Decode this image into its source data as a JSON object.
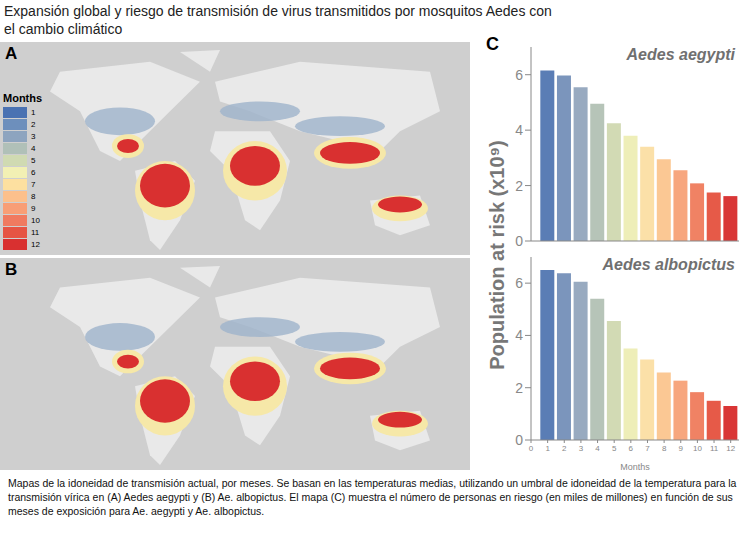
{
  "title": "Expansión global y riesgo de transmisión de virus transmitidos por mosquitos Aedes con el cambio climático",
  "caption": "Mapas de la idoneidad de transmisión actual, por meses. Se basan en las temperaturas medias, utilizando un umbral de idoneidad de la temperatura para la transmisión vírica en (A) Aedes aegypti y (B) Ae. albopictus. El mapa (C) muestra el número de personas en riesgo (en miles de millones) en función de sus meses de exposición para Ae. aegypti y Ae. albopictus.",
  "maps": [
    {
      "label": "A"
    },
    {
      "label": "B"
    }
  ],
  "map_legend": {
    "title": "Months",
    "items": [
      1,
      2,
      3,
      4,
      5,
      6,
      7,
      8,
      9,
      10,
      11,
      12
    ],
    "colors": [
      "#4a72b2",
      "#6d8fbc",
      "#8da4bf",
      "#b0c0b8",
      "#d0dab2",
      "#f2f0b4",
      "#fde0a0",
      "#fcc08c",
      "#f89e76",
      "#f07a60",
      "#e65444",
      "#d93030"
    ]
  },
  "panel_c": {
    "label": "C",
    "ylabel": "Population at risk (x10⁹)"
  },
  "chart_data": [
    {
      "type": "bar",
      "title": "Aedes aegypti",
      "x": [
        1,
        2,
        3,
        4,
        5,
        6,
        7,
        8,
        9,
        10,
        11,
        12
      ],
      "values": [
        6.15,
        5.97,
        5.55,
        4.95,
        4.25,
        3.8,
        3.4,
        2.95,
        2.55,
        2.08,
        1.75,
        1.62
      ],
      "colors": [
        "#5a7db5",
        "#7b95bc",
        "#98aac0",
        "#b6c4b8",
        "#d2dab4",
        "#eeeeb8",
        "#fbe0a8",
        "#fbc894",
        "#f7a67e",
        "#f08264",
        "#e65a48",
        "#d93636"
      ],
      "xlim": [
        0,
        12.5
      ],
      "ylim": [
        0,
        7
      ],
      "yticks": [
        0,
        2,
        4,
        6
      ],
      "tick_labels": "y"
    },
    {
      "type": "bar",
      "title": "Aedes albopictus",
      "x": [
        1,
        2,
        3,
        4,
        5,
        6,
        7,
        8,
        9,
        10,
        11,
        12
      ],
      "values": [
        6.5,
        6.38,
        6.05,
        5.4,
        4.55,
        3.5,
        3.08,
        2.58,
        2.27,
        1.83,
        1.5,
        1.3
      ],
      "colors": [
        "#5a7db5",
        "#7b95bc",
        "#98aac0",
        "#b6c4b8",
        "#d2dab4",
        "#eeeeb8",
        "#fbe0a8",
        "#fbc894",
        "#f7a67e",
        "#f08264",
        "#e65a48",
        "#d93636"
      ],
      "xlim": [
        0,
        12.5
      ],
      "ylim": [
        0,
        7
      ],
      "yticks": [
        0,
        2,
        4,
        6
      ],
      "xticks": [
        0,
        1,
        2,
        3,
        4,
        5,
        6,
        7,
        8,
        9,
        10,
        11,
        12
      ],
      "xlabel": "Months"
    }
  ]
}
